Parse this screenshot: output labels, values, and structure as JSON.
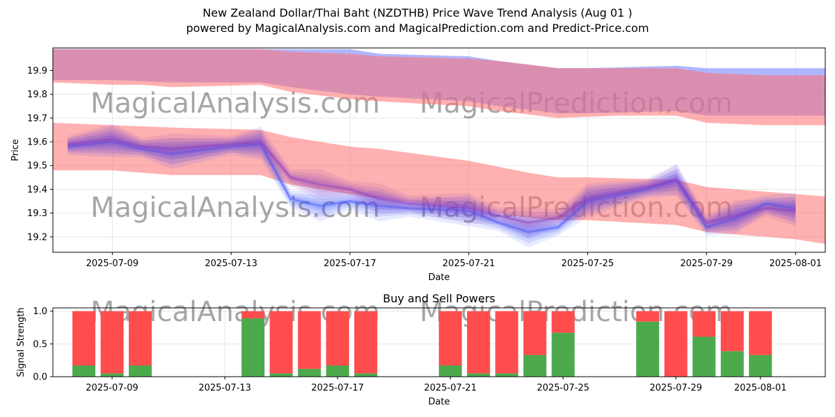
{
  "title_line1": "New Zealand Dollar/Thai Baht (NZDTHB) Price Wave Trend Analysis (Aug 01 )",
  "title_line2": "powered by MagicalAnalysis.com and MagicalPrediction.com and Predict-Price.com",
  "watermarks": [
    "MagicalAnalysis.com",
    "MagicalPrediction.com"
  ],
  "colors": {
    "red_band": "#ff6f6f",
    "blue_band": "#6f7bff",
    "purple_line": "#8a3fbf",
    "blue_line": "#3f56ff",
    "buy": "#4caa4c",
    "sell": "#ff4d4d"
  },
  "chart_data": [
    {
      "type": "area",
      "xlabel": "Date",
      "ylabel": "Price",
      "xlim": [
        "2025-07-07",
        "2025-08-02"
      ],
      "ylim": [
        19.135,
        19.995
      ],
      "grid": true,
      "x_ticks": [
        "2025-07-09",
        "2025-07-13",
        "2025-07-17",
        "2025-07-21",
        "2025-07-25",
        "2025-07-29",
        "2025-08-01"
      ],
      "y_ticks": [
        19.2,
        19.3,
        19.4,
        19.5,
        19.6,
        19.7,
        19.8,
        19.9
      ],
      "upper_red_band": {
        "x": [
          "2025-07-07",
          "2025-07-09",
          "2025-07-10",
          "2025-07-11",
          "2025-07-14",
          "2025-07-15",
          "2025-07-17",
          "2025-07-18",
          "2025-07-21",
          "2025-07-22",
          "2025-07-24",
          "2025-07-26",
          "2025-07-28",
          "2025-07-29",
          "2025-07-31",
          "2025-08-01",
          "2025-08-02"
        ],
        "upper": [
          19.99,
          19.99,
          19.99,
          19.99,
          19.99,
          19.98,
          19.97,
          19.96,
          19.95,
          19.94,
          19.91,
          19.91,
          19.91,
          19.89,
          19.88,
          19.88,
          19.88
        ],
        "lower": [
          19.85,
          19.84,
          19.84,
          19.83,
          19.84,
          19.81,
          19.78,
          19.77,
          19.75,
          19.73,
          19.7,
          19.71,
          19.71,
          19.68,
          19.67,
          19.67,
          19.67
        ]
      },
      "upper_blue_band": {
        "x": [
          "2025-07-07",
          "2025-07-09",
          "2025-07-11",
          "2025-07-14",
          "2025-07-15",
          "2025-07-17",
          "2025-07-18",
          "2025-07-21",
          "2025-07-22",
          "2025-07-24",
          "2025-07-25",
          "2025-07-28",
          "2025-07-29",
          "2025-07-31",
          "2025-08-02"
        ],
        "upper": [
          19.99,
          19.99,
          19.99,
          19.99,
          19.99,
          19.99,
          19.97,
          19.96,
          19.94,
          19.91,
          19.91,
          19.92,
          19.91,
          19.91,
          19.91
        ],
        "lower": [
          19.86,
          19.86,
          19.85,
          19.85,
          19.83,
          19.8,
          19.79,
          19.77,
          19.75,
          19.72,
          19.72,
          19.73,
          19.71,
          19.71,
          19.71
        ]
      },
      "lower_red_band": {
        "x": [
          "2025-07-07",
          "2025-07-09",
          "2025-07-11",
          "2025-07-14",
          "2025-07-15",
          "2025-07-17",
          "2025-07-18",
          "2025-07-21",
          "2025-07-23",
          "2025-07-24",
          "2025-07-25",
          "2025-07-28",
          "2025-07-29",
          "2025-08-01",
          "2025-08-02"
        ],
        "upper": [
          19.68,
          19.67,
          19.66,
          19.65,
          19.62,
          19.58,
          19.57,
          19.52,
          19.47,
          19.45,
          19.45,
          19.44,
          19.41,
          19.38,
          19.37
        ],
        "lower": [
          19.48,
          19.48,
          19.46,
          19.46,
          19.42,
          19.38,
          19.36,
          19.32,
          19.28,
          19.27,
          19.27,
          19.25,
          19.22,
          19.19,
          19.17
        ]
      },
      "blue_fan_center": {
        "x": [
          "2025-07-07.5",
          "2025-07-09",
          "2025-07-10",
          "2025-07-11",
          "2025-07-13",
          "2025-07-14",
          "2025-07-15",
          "2025-07-16",
          "2025-07-17",
          "2025-07-18",
          "2025-07-19",
          "2025-07-21",
          "2025-07-22",
          "2025-07-23",
          "2025-07-24",
          "2025-07-25",
          "2025-07-27",
          "2025-07-28",
          "2025-07-29",
          "2025-07-30",
          "2025-07-31",
          "2025-08-01"
        ],
        "values": [
          19.58,
          19.6,
          19.57,
          19.55,
          19.58,
          19.59,
          19.36,
          19.33,
          19.35,
          19.33,
          19.32,
          19.31,
          19.26,
          19.22,
          19.24,
          19.35,
          19.4,
          19.44,
          19.24,
          19.28,
          19.34,
          19.32
        ]
      },
      "purple_fan_center": {
        "x": [
          "2025-07-07.5",
          "2025-07-09",
          "2025-07-10",
          "2025-07-11",
          "2025-07-13",
          "2025-07-14",
          "2025-07-15",
          "2025-07-16",
          "2025-07-17",
          "2025-07-18",
          "2025-07-19",
          "2025-07-21",
          "2025-07-22",
          "2025-07-23",
          "2025-07-24",
          "2025-07-25",
          "2025-07-27",
          "2025-07-28",
          "2025-07-29",
          "2025-07-30",
          "2025-07-31",
          "2025-08-01"
        ],
        "values": [
          19.59,
          19.61,
          19.58,
          19.57,
          19.59,
          19.6,
          19.45,
          19.42,
          19.4,
          19.36,
          19.34,
          19.32,
          19.29,
          19.26,
          19.28,
          19.36,
          19.41,
          19.44,
          19.26,
          19.29,
          19.32,
          19.31
        ]
      }
    },
    {
      "type": "bar",
      "title": "Buy and Sell Powers",
      "xlabel": "Date",
      "ylabel": "Signal Strength",
      "ylim": [
        0,
        1.05
      ],
      "y_ticks": [
        0.0,
        0.5,
        1.0
      ],
      "x_ticks": [
        "2025-07-09",
        "2025-07-13",
        "2025-07-17",
        "2025-07-21",
        "2025-07-25",
        "2025-07-29",
        "2025-08-01"
      ],
      "categories": [
        "2025-07-08",
        "2025-07-09",
        "2025-07-10",
        "2025-07-14",
        "2025-07-15",
        "2025-07-16",
        "2025-07-17",
        "2025-07-18",
        "2025-07-21",
        "2025-07-22",
        "2025-07-23",
        "2025-07-24",
        "2025-07-25",
        "2025-07-28",
        "2025-07-29",
        "2025-07-30",
        "2025-07-31",
        "2025-08-01"
      ],
      "series": [
        {
          "name": "buy",
          "values": [
            0.17,
            0.05,
            0.17,
            0.89,
            0.05,
            0.12,
            0.17,
            0.05,
            0.17,
            0.05,
            0.05,
            0.33,
            0.67,
            0.84,
            0.0,
            0.61,
            0.39,
            0.33
          ]
        },
        {
          "name": "sell",
          "values": [
            0.83,
            0.95,
            0.83,
            0.11,
            0.95,
            0.88,
            0.83,
            0.95,
            0.83,
            0.95,
            0.95,
            0.67,
            0.33,
            0.16,
            1.0,
            0.39,
            0.61,
            0.67
          ]
        }
      ]
    }
  ]
}
